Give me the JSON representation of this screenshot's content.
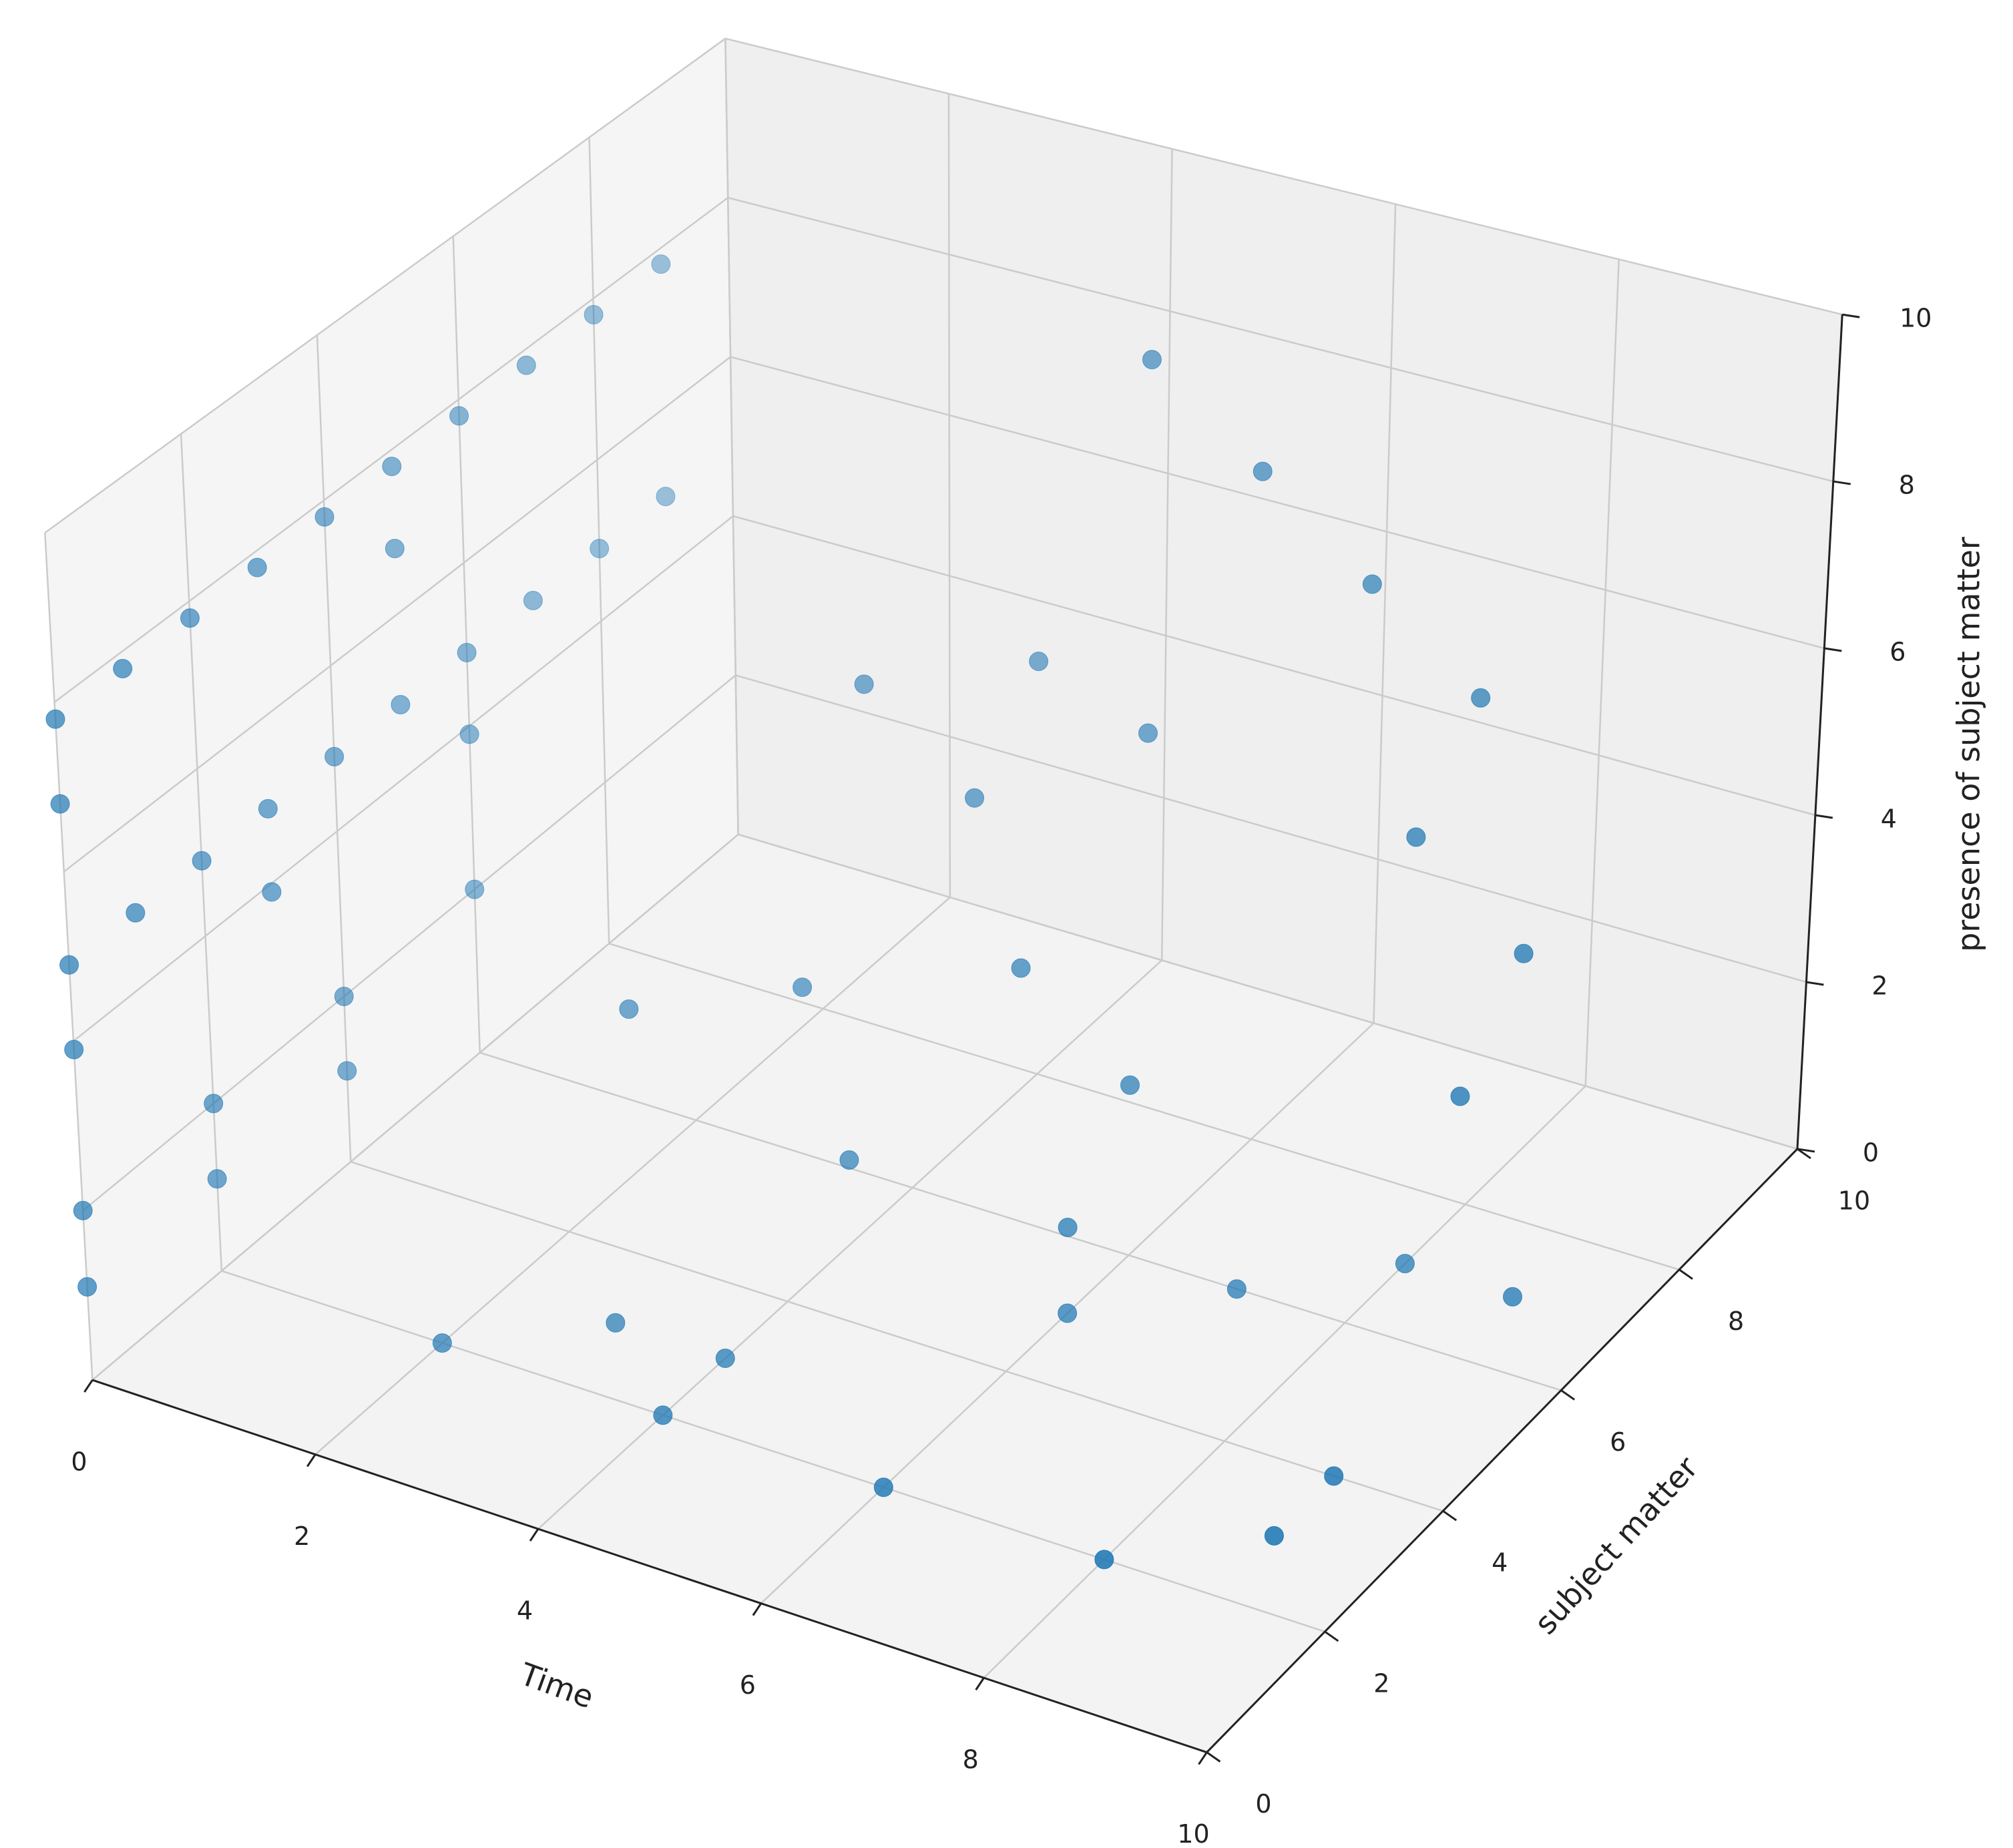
{
  "chart_data": {
    "type": "scatter3d",
    "xlabel": "Time",
    "ylabel": "subject matter",
    "zlabel": "presence of subject matter",
    "color": "#1f77b4",
    "grid": true,
    "xlim": [
      0,
      10
    ],
    "ylim": [
      0,
      10
    ],
    "zlim": [
      0,
      10
    ],
    "xticks": [
      0,
      2,
      4,
      6,
      8,
      10
    ],
    "yticks": [
      0,
      2,
      4,
      6,
      8,
      10
    ],
    "zticks": [
      0,
      2,
      4,
      6,
      8,
      10
    ],
    "x": [
      0,
      0,
      0,
      0,
      0,
      0,
      0,
      0,
      0,
      0,
      0,
      0,
      0,
      0,
      0,
      0,
      0,
      0,
      0,
      0,
      0,
      0,
      0,
      0,
      0,
      0,
      0,
      0,
      0,
      0,
      0,
      0,
      5,
      6,
      7,
      8,
      8,
      9,
      9,
      4,
      5,
      3,
      4,
      5,
      6,
      3,
      2,
      4,
      6,
      4,
      6,
      8,
      9,
      9,
      9,
      8,
      7,
      6,
      3,
      2,
      4
    ],
    "y": [
      0,
      1,
      2,
      3,
      4,
      5,
      6,
      7,
      8,
      9,
      0,
      5,
      0,
      1,
      2,
      3,
      4,
      5,
      6,
      7,
      8,
      9,
      0,
      3,
      6,
      0,
      2,
      4,
      6,
      0,
      2,
      4,
      8,
      8,
      8,
      8,
      7,
      7,
      6,
      8,
      8,
      7,
      7,
      6,
      6,
      6,
      5,
      5,
      5,
      2,
      2,
      2,
      3,
      4,
      7,
      7,
      6,
      5,
      3,
      2,
      3
    ],
    "z": [
      7.8,
      7.8,
      7.8,
      7.8,
      7.8,
      7.8,
      7.8,
      7.8,
      7.8,
      7.8,
      6.8,
      6.8,
      4.9,
      4.9,
      4.9,
      4.9,
      4.9,
      4.9,
      4.9,
      4.9,
      4.9,
      4.9,
      3.9,
      3.9,
      3.9,
      2,
      2,
      2,
      2,
      1.1,
      1.1,
      1.1,
      9,
      8,
      7,
      6,
      5,
      4,
      3,
      5,
      4.5,
      5,
      4,
      3,
      2,
      2,
      2,
      1,
      1,
      0,
      0,
      0,
      0,
      0,
      0,
      0,
      0,
      0,
      0,
      0,
      0
    ]
  }
}
